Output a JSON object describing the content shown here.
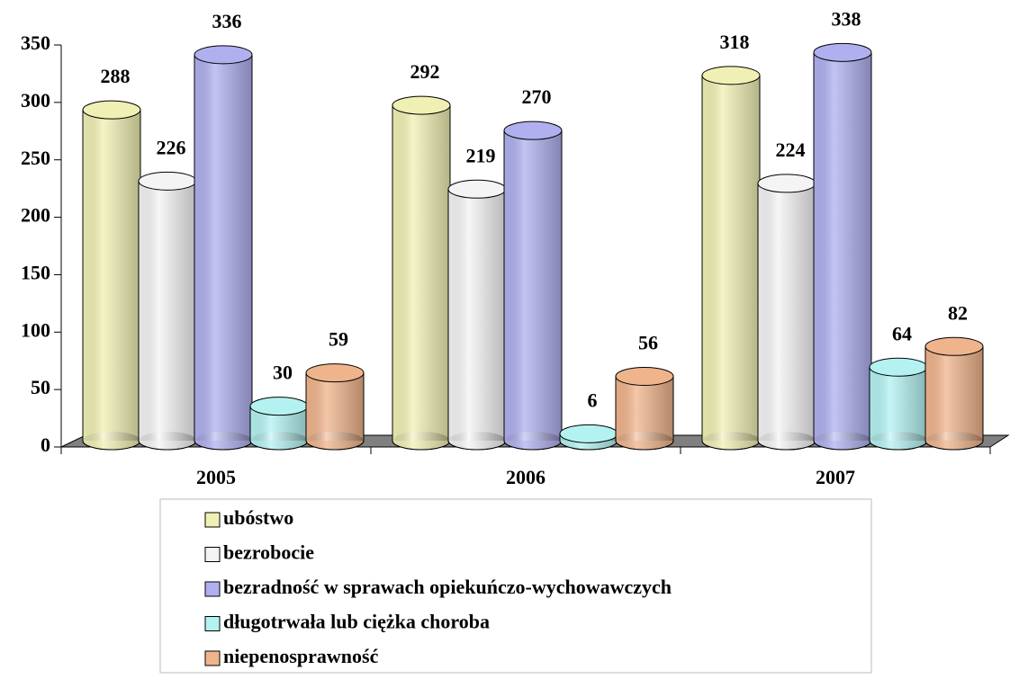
{
  "chart_data": {
    "type": "bar",
    "categories": [
      "2005",
      "2006",
      "2007"
    ],
    "series": [
      {
        "name": "ubóstwo",
        "color": "#f0f0b4",
        "values": [
          288,
          292,
          318
        ]
      },
      {
        "name": "bezrobocie",
        "color": "#f4f4f4",
        "values": [
          226,
          219,
          224
        ]
      },
      {
        "name": "bezradność w sprawach opiekuńczo-wychowawczych",
        "color": "#b0b0f0",
        "values": [
          336,
          270,
          338
        ]
      },
      {
        "name": "długotrwała lub ciężka choroba",
        "color": "#b4f2f2",
        "values": [
          30,
          6,
          64
        ]
      },
      {
        "name": "niepenosprawność",
        "color": "#f0b48c",
        "values": [
          59,
          56,
          82
        ]
      }
    ],
    "ylim": [
      0,
      350
    ],
    "yticks": [
      0,
      50,
      100,
      150,
      200,
      250,
      300,
      350
    ],
    "legend": "bottom"
  }
}
